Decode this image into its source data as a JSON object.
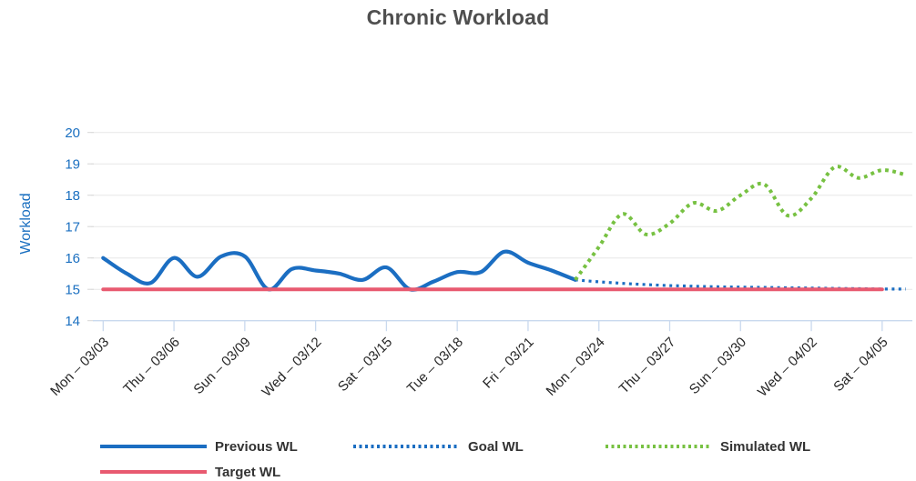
{
  "chart_data": {
    "type": "line",
    "title": "Chronic Workload",
    "xlabel": "",
    "ylabel": "Workload",
    "ylim": [
      14,
      20
    ],
    "yticks": [
      14,
      15,
      16,
      17,
      18,
      19,
      20
    ],
    "grid": "horizontal",
    "x_unit": "day",
    "x_start_date": "03/03",
    "x_tick_days": [
      0,
      3,
      6,
      9,
      12,
      15,
      18,
      21,
      24,
      27,
      30,
      33
    ],
    "x_ticklabels": [
      "Mon – 03/03",
      "Thu – 03/06",
      "Sun – 03/09",
      "Wed – 03/12",
      "Sat – 03/15",
      "Tue – 03/18",
      "Fri – 03/21",
      "Mon – 03/24",
      "Thu – 03/27",
      "Sun – 03/30",
      "Wed – 04/02",
      "Sat – 04/05"
    ],
    "series": [
      {
        "name": "Previous WL",
        "color": "#1b6ec2",
        "style": "solid",
        "days": [
          0,
          1,
          2,
          3,
          4,
          5,
          6,
          7,
          8,
          9,
          10,
          11,
          12,
          13,
          14,
          15,
          16,
          17,
          18,
          19,
          20
        ],
        "values": [
          16.0,
          15.5,
          15.2,
          16.0,
          15.4,
          16.05,
          16.05,
          15.0,
          15.65,
          15.6,
          15.5,
          15.3,
          15.7,
          15.0,
          15.25,
          15.55,
          15.55,
          16.2,
          15.85,
          15.6,
          15.3
        ]
      },
      {
        "name": "Goal WL",
        "color": "#1b6ec2",
        "style": "dotted",
        "days": [
          20,
          21,
          22,
          23,
          24,
          25,
          26,
          27,
          28,
          29,
          30,
          31,
          32,
          33,
          34
        ],
        "values": [
          15.3,
          15.24,
          15.19,
          15.15,
          15.12,
          15.1,
          15.08,
          15.07,
          15.06,
          15.05,
          15.04,
          15.03,
          15.02,
          15.01,
          15.01
        ]
      },
      {
        "name": "Simulated WL",
        "color": "#77c142",
        "style": "dotted",
        "days": [
          20,
          21,
          22,
          23,
          24,
          25,
          26,
          27,
          28,
          29,
          30,
          31,
          32,
          33,
          34
        ],
        "values": [
          15.3,
          16.35,
          17.4,
          16.75,
          17.1,
          17.75,
          17.5,
          18.0,
          18.35,
          17.35,
          17.9,
          18.9,
          18.55,
          18.8,
          18.65
        ]
      },
      {
        "name": "Target WL",
        "color": "#e85a70",
        "style": "solid",
        "days": [
          0,
          33
        ],
        "values": [
          15,
          15
        ]
      }
    ],
    "legend": [
      {
        "label": "Previous WL",
        "color": "#1b6ec2",
        "style": "solid"
      },
      {
        "label": "Goal WL",
        "color": "#1b6ec2",
        "style": "dotted"
      },
      {
        "label": "Simulated WL",
        "color": "#77c142",
        "style": "dotted"
      },
      {
        "label": "Target WL",
        "color": "#e85a70",
        "style": "solid"
      }
    ],
    "legend_position": "bottom"
  }
}
